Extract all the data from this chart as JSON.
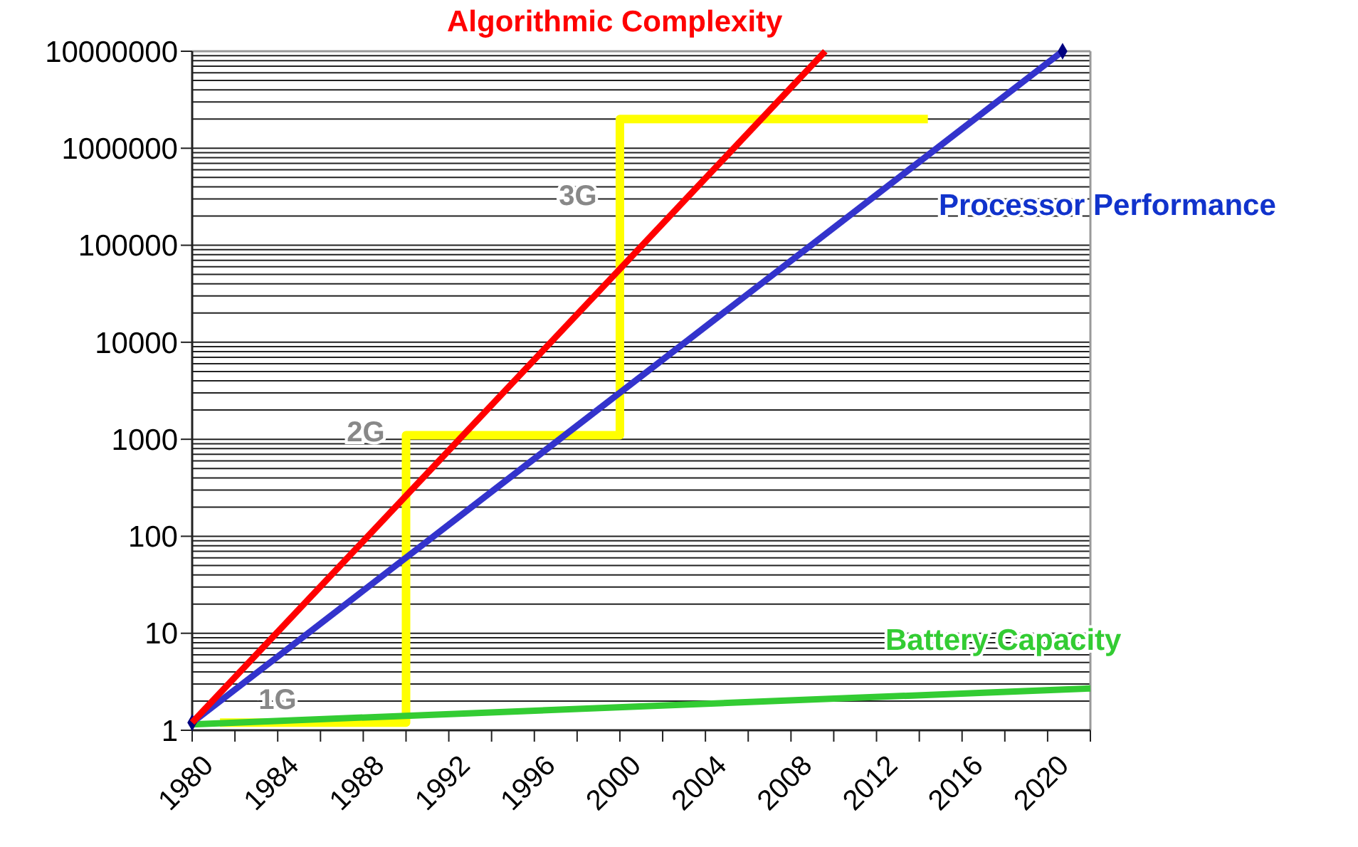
{
  "chart_data": {
    "type": "line",
    "log": "y",
    "xlim": [
      1980,
      2022
    ],
    "xticks": [
      1980,
      {
        "value": 1982,
        "label": null
      },
      {
        "value": 1984,
        "label": "1984"
      },
      {
        "value": 1986,
        "label": null
      },
      1988,
      {
        "value": 1990,
        "label": null
      },
      1992,
      {
        "value": 1994,
        "label": null
      },
      1996,
      {
        "value": 1998,
        "label": null
      },
      2000,
      {
        "value": 2002,
        "label": null
      },
      2004,
      {
        "value": 2006,
        "label": null
      },
      2008,
      {
        "value": 2010,
        "label": null
      },
      2012,
      {
        "value": 2014,
        "label": null
      },
      2016,
      {
        "value": 2018,
        "label": null
      },
      2020,
      {
        "value": 2022,
        "label": null
      }
    ],
    "ylim": [
      1,
      10000000
    ],
    "yticks": [
      1,
      10,
      100,
      1000,
      10000,
      100000,
      1000000,
      10000000
    ],
    "grid": "y",
    "series": [
      {
        "name": "Algorithmic Complexity",
        "color": "#ff0000",
        "x": [
          1980,
          2009.6
        ],
        "values": [
          1.2,
          10000000
        ]
      },
      {
        "name": "Processor Performance",
        "color": "#3333cc",
        "x": [
          1980,
          2020.7
        ],
        "values": [
          1.2,
          10000000
        ],
        "marker": "diamond"
      },
      {
        "name": "Battery Capacity",
        "color": "#33cc33",
        "x": [
          1980,
          2022
        ],
        "values": [
          1.15,
          2.7
        ]
      },
      {
        "type": "step",
        "color": "#ffff00",
        "x": [
          1981.3,
          1990,
          2000,
          2014.4
        ],
        "values": [
          1.2,
          1100,
          2000000,
          2000000
        ]
      }
    ],
    "annotations": [
      "1G",
      "2G",
      "3G"
    ]
  }
}
